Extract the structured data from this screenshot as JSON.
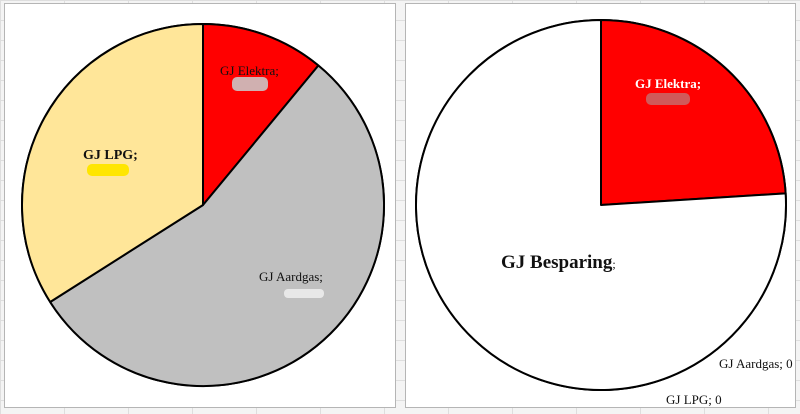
{
  "chart_data": [
    {
      "type": "pie",
      "title": "",
      "start_angle_deg": 0,
      "direction": "clockwise",
      "slices": [
        {
          "name": "GJ Elektra",
          "label": "GJ Elektra;",
          "value": 11,
          "color": "#ff0000"
        },
        {
          "name": "GJ Aardgas",
          "label": "GJ Aardgas;",
          "value": 55,
          "color": "#c0c0c0"
        },
        {
          "name": "GJ LPG",
          "label": "GJ  LPG;",
          "value": 34,
          "color": "#ffe699"
        }
      ],
      "redacted_value_marks": [
        {
          "slice": "GJ Elektra",
          "color": "#d0b0b0"
        },
        {
          "slice": "GJ Aardgas",
          "color": "#e8e8e8"
        },
        {
          "slice": "GJ LPG",
          "color": "#ffe600"
        }
      ]
    },
    {
      "type": "pie",
      "title": "",
      "start_angle_deg": 0,
      "direction": "clockwise",
      "slices": [
        {
          "name": "GJ Elektra",
          "label": "GJ Elektra;",
          "value": 24,
          "color": "#ff0000"
        },
        {
          "name": "GJ Aardgas",
          "label": "GJ Aardgas; 0",
          "value": 0,
          "color": "#ffffff"
        },
        {
          "name": "GJ LPG",
          "label": "GJ LPG; 0",
          "value": 0,
          "color": "#ffffff"
        },
        {
          "name": "GJ Besparing",
          "label": "GJ Besparing",
          "label_suffix": ";",
          "value": 76,
          "color": "#ffffff"
        }
      ],
      "redacted_value_marks": [
        {
          "slice": "GJ Elektra",
          "color": "#d05a5a"
        }
      ]
    }
  ]
}
